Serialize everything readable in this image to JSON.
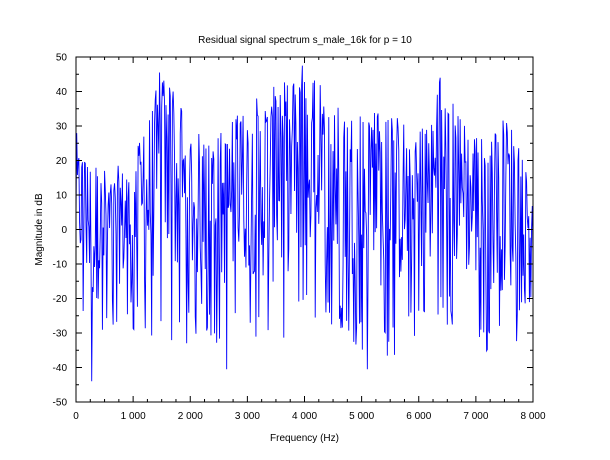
{
  "chart_data": {
    "type": "line",
    "title": "Residual signal spectrum s_male_16k for p = 10",
    "xlabel": "Frequency (Hz)",
    "ylabel": "Magnitude in dB",
    "xlim": [
      0,
      8000
    ],
    "ylim": [
      -50,
      50
    ],
    "x_ticks": [
      0,
      1000,
      2000,
      3000,
      4000,
      5000,
      6000,
      7000,
      8000
    ],
    "x_tick_labels": [
      "0",
      "1 000",
      "2 000",
      "3 000",
      "4 000",
      "5 000",
      "6 000",
      "7 000",
      "8 000"
    ],
    "y_ticks": [
      -50,
      -40,
      -30,
      -20,
      -10,
      0,
      10,
      20,
      30,
      40,
      50
    ],
    "y_tick_labels": [
      "-50",
      "-40",
      "-30",
      "-20",
      "-10",
      "0",
      "10",
      "20",
      "30",
      "40",
      "50"
    ],
    "grid": false,
    "series_color": "#0000ff",
    "notable_points": [
      {
        "x": 1460,
        "y": 45.5
      },
      {
        "x": 3960,
        "y": 47.5
      },
      {
        "x": 6380,
        "y": 44
      },
      {
        "x": 280,
        "y": -44
      },
      {
        "x": 2640,
        "y": -40.5
      },
      {
        "x": 5100,
        "y": -40.5
      }
    ],
    "envelope": {
      "x": [
        0,
        300,
        600,
        1000,
        1300,
        1500,
        1800,
        2200,
        2600,
        3000,
        3500,
        4000,
        4500,
        5000,
        5500,
        6000,
        6400,
        6800,
        7200,
        7600,
        8000
      ],
      "upper": [
        28,
        17,
        15,
        18,
        34,
        45,
        38,
        25,
        28,
        37,
        40,
        47,
        38,
        35,
        33,
        30,
        44,
        31,
        28,
        32,
        10
      ],
      "lower": [
        -20,
        -40,
        -30,
        -30,
        -35,
        -33,
        -37,
        -30,
        -35,
        -30,
        -38,
        -25,
        -30,
        -35,
        -38,
        -30,
        -28,
        -30,
        -36,
        -38,
        -20
      ]
    }
  }
}
